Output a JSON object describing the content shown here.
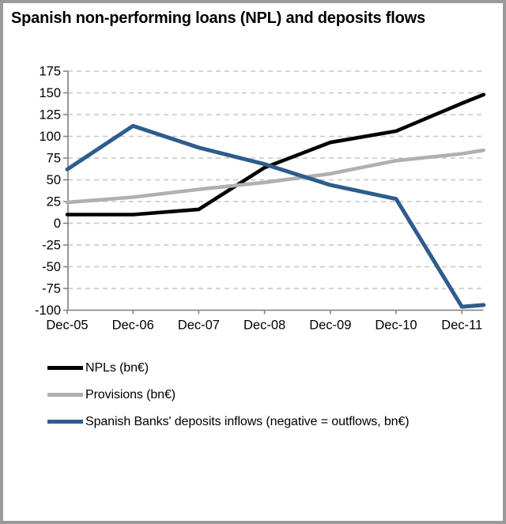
{
  "chart_data": {
    "type": "line",
    "title": "Spanish non-performing loans (NPL) and deposits flows",
    "categories": [
      "Dec-05",
      "Dec-06",
      "Dec-07",
      "Dec-08",
      "Dec-09",
      "Dec-10",
      "Dec-11"
    ],
    "y_ticks": [
      175,
      150,
      125,
      100,
      75,
      50,
      25,
      0,
      -25,
      -50,
      -75,
      -100
    ],
    "ylim": [
      -100,
      175
    ],
    "xlabel": "",
    "ylabel": "",
    "grid": "horizontal-dashed",
    "legend_position": "below-left",
    "x_extension_years": 0.33,
    "series": [
      {
        "name": "NPLs (bn€)",
        "color": "#000000",
        "values": [
          10,
          10,
          16,
          64,
          93,
          106,
          138
        ],
        "end_value": 148
      },
      {
        "name": "Provisions (bn€)",
        "color": "#b0b0b0",
        "values": [
          24,
          30,
          39,
          47,
          57,
          72,
          80
        ],
        "end_value": 84
      },
      {
        "name": "Spanish Banks' deposits inflows (negative = outflows, bn€)",
        "color": "#2e5c8c",
        "values": [
          62,
          112,
          87,
          68,
          44,
          28,
          -96
        ],
        "end_value": -94
      }
    ]
  },
  "colors": {
    "frame_border": "#9a9a9a",
    "axis": "#7f7f7f",
    "gridline": "#c6c6c6",
    "text": "#000000"
  }
}
